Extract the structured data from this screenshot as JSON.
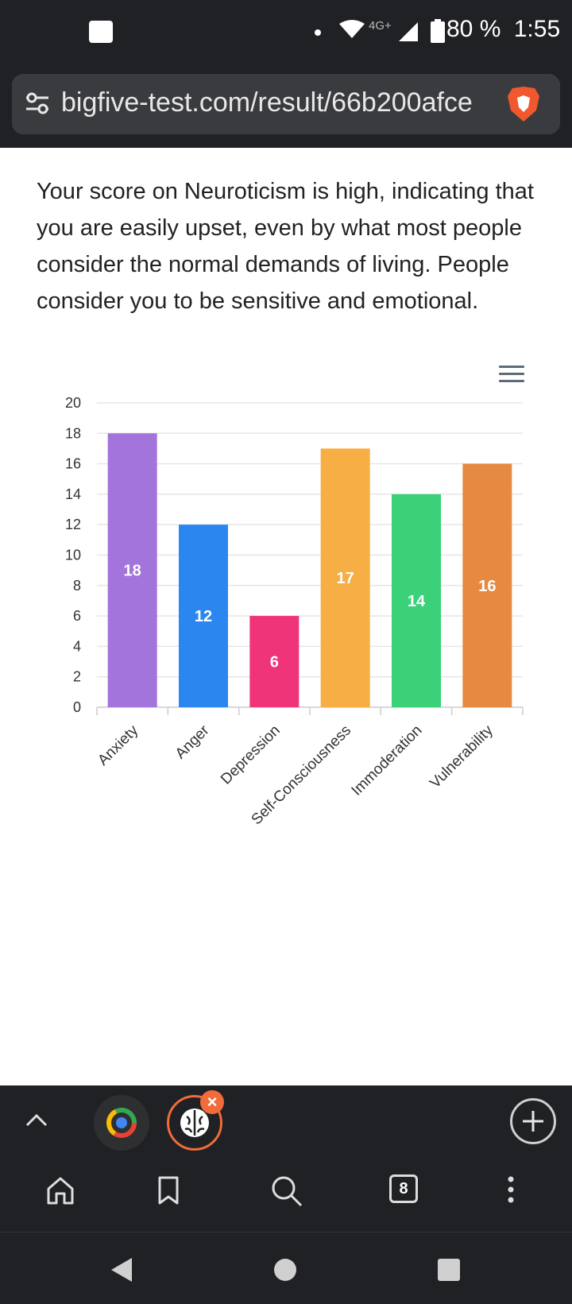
{
  "status_bar": {
    "network_label": "4G+",
    "battery_text": "80 %",
    "time": "1:55"
  },
  "url_bar": {
    "url": "bigfive-test.com/result/66b200afce"
  },
  "content": {
    "description": "Your score on Neuroticism is high, indicating that you are easily upset, even by what most people consider the normal demands of living. People consider you to be sensitive and emotional."
  },
  "chart_data": {
    "type": "bar",
    "categories": [
      "Anxiety",
      "Anger",
      "Depression",
      "Self-Consciousness",
      "Immoderation",
      "Vulnerability"
    ],
    "values": [
      18,
      12,
      6,
      17,
      14,
      16
    ],
    "colors": [
      "#a374db",
      "#2b86f0",
      "#f0347a",
      "#f6ae45",
      "#3bd179",
      "#e78a41"
    ],
    "ylim": [
      0,
      20
    ],
    "yticks": [
      "0",
      "2",
      "4",
      "6",
      "8",
      "10",
      "12",
      "14",
      "16",
      "18",
      "20"
    ],
    "grid": true,
    "data_labels": true
  },
  "toolbar": {
    "tab_count": "8",
    "icons": [
      "chevron-up-icon",
      "chromium-tab-icon",
      "brain-tab-icon",
      "close-icon",
      "plus-icon",
      "home-icon",
      "bookmark-icon",
      "search-icon",
      "tabs-icon",
      "more-icon"
    ]
  }
}
